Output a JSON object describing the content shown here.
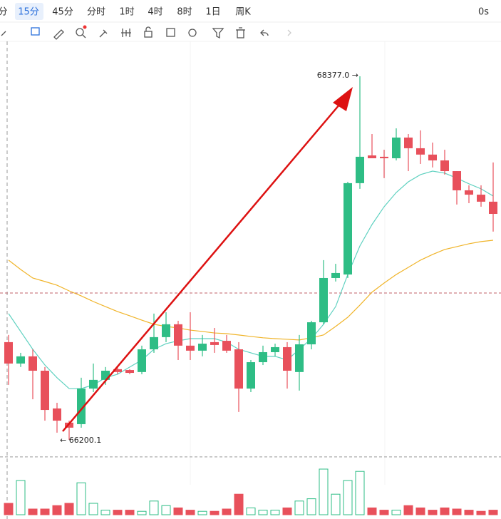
{
  "toolbar": {
    "intervals": [
      "分",
      "15分",
      "45分",
      "分时",
      "1时",
      "4时",
      "8时",
      "1日",
      "周K"
    ],
    "selected": 1,
    "countdown": "0s"
  },
  "chart_data": {
    "type": "candlestick",
    "ylim": [
      65931,
      68586
    ],
    "up_color": "#2ebd85",
    "down_color": "#e8505b",
    "open": [
      66785,
      66657,
      66700,
      66614,
      66388,
      66303,
      66294,
      66507,
      66559,
      66623,
      66618,
      66606,
      66742,
      66815,
      66892,
      66764,
      66734,
      66785,
      66793,
      66742,
      66507,
      66665,
      66725,
      66755,
      66606,
      66772,
      66904,
      67169,
      67190,
      67737,
      67903,
      67895,
      67886,
      68010,
      67946,
      67908,
      67873,
      67809,
      67694,
      67668,
      67626
    ],
    "high": [
      66828,
      66721,
      66742,
      66636,
      66422,
      66315,
      66572,
      66657,
      66636,
      66636,
      66623,
      66764,
      66956,
      66964,
      66913,
      66964,
      66828,
      66870,
      66828,
      66785,
      66678,
      66764,
      66776,
      66785,
      66828,
      66913,
      67276,
      67254,
      67745,
      68377.0,
      68031,
      67937,
      68065,
      68031,
      68053,
      67980,
      67937,
      67809,
      67724,
      67724,
      67861
    ],
    "low": [
      66529,
      66636,
      66443,
      66315,
      66243,
      66200.1,
      66273,
      66486,
      66529,
      66593,
      66593,
      66593,
      66721,
      66785,
      66678,
      66678,
      66700,
      66721,
      66721,
      66367,
      66486,
      66648,
      66700,
      66507,
      66495,
      66742,
      66892,
      67148,
      67169,
      67703,
      67886,
      67767,
      67873,
      67809,
      67852,
      67831,
      67788,
      67609,
      67617,
      67596,
      67447
    ],
    "close": [
      66657,
      66700,
      66614,
      66379,
      66315,
      66273,
      66507,
      66559,
      66614,
      66606,
      66601,
      66742,
      66815,
      66892,
      66764,
      66734,
      66776,
      66768,
      66734,
      66507,
      66665,
      66725,
      66755,
      66614,
      66772,
      66904,
      67169,
      67199,
      67737,
      67895,
      67886,
      67886,
      68010,
      67946,
      67908,
      67873,
      67809,
      67694,
      67668,
      67626,
      67553
    ],
    "moving_averages": [
      {
        "color": "#5fd1c0",
        "values": [
          66956,
          66849,
          66742,
          66648,
          66572,
          66507,
          66507,
          66529,
          66572,
          66593,
          66636,
          66678,
          66742,
          66776,
          66793,
          66806,
          66806,
          66806,
          66785,
          66742,
          66721,
          66700,
          66700,
          66678,
          66742,
          66806,
          66892,
          66998,
          67190,
          67361,
          67489,
          67596,
          67681,
          67745,
          67788,
          67809,
          67797,
          67767,
          67733,
          67703,
          67660
        ]
      },
      {
        "color": "#f0b429",
        "values": [
          67276,
          67220,
          67169,
          67148,
          67126,
          67092,
          67062,
          67028,
          66998,
          66968,
          66943,
          66917,
          66892,
          66879,
          66870,
          66857,
          66849,
          66840,
          66836,
          66828,
          66819,
          66811,
          66806,
          66802,
          66798,
          66811,
          66828,
          66879,
          66934,
          67007,
          67084,
          67139,
          67190,
          67233,
          67276,
          67310,
          67340,
          67357,
          67374,
          67387,
          67395
        ]
      }
    ],
    "volume": [
      10,
      30,
      5,
      5,
      8,
      10,
      28,
      10,
      4,
      4,
      4,
      3,
      12,
      8,
      6,
      4,
      3,
      3,
      5,
      18,
      6,
      4,
      4,
      6,
      12,
      14,
      40,
      18,
      30,
      38,
      6,
      4,
      4,
      8,
      6,
      4,
      6,
      5,
      4,
      3,
      4
    ],
    "volume_lim": [
      0,
      50
    ],
    "price_lines": [
      {
        "value": 67079,
        "color": "#c0606a"
      },
      {
        "value": 66098,
        "color": "#999999"
      }
    ],
    "annotations": {
      "high_label": "68377.0 →",
      "low_label": "← 66200.1"
    },
    "arrow_color": "#dd1111"
  }
}
